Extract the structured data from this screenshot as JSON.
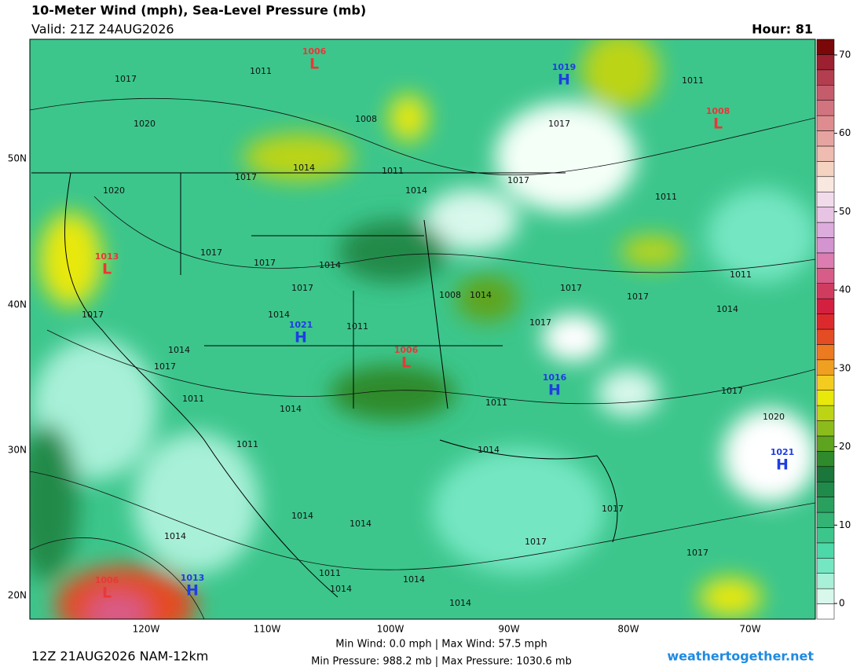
{
  "header": {
    "title": "10-Meter Wind (mph), Sea-Level Pressure (mb)",
    "valid": "Valid: 21Z 24AUG2026",
    "hour": "Hour: 81"
  },
  "axes": {
    "lat_labels": [
      "50N",
      "40N",
      "30N",
      "20N"
    ],
    "lon_labels": [
      "120W",
      "110W",
      "100W",
      "90W",
      "80W",
      "70W"
    ]
  },
  "colorbar": {
    "lim": [
      -2,
      72
    ],
    "ticks": [
      0,
      10,
      20,
      30,
      40,
      50,
      60,
      70
    ],
    "colors": [
      "#ffffff",
      "#d8f8ec",
      "#a8f0d8",
      "#74e6c2",
      "#4cd8a8",
      "#3cc68c",
      "#34b474",
      "#2aa05e",
      "#208a4a",
      "#1a763a",
      "#2e8a2a",
      "#5ea41e",
      "#8cbc1c",
      "#bcd414",
      "#e8e80a",
      "#f4cc20",
      "#f0a020",
      "#ec7a20",
      "#e44c24",
      "#dc2a2c",
      "#d42040",
      "#d03c60",
      "#d85c88",
      "#dc7cb0",
      "#d494d0",
      "#dcacdc",
      "#e8c4e4",
      "#f2dcec",
      "#f8e8e0",
      "#f4d4c0",
      "#eebcb0",
      "#e6a4a0",
      "#de8c90",
      "#d27480",
      "#c45c6c",
      "#b23e50",
      "#9c2030",
      "#7a0808"
    ]
  },
  "pressure_centers": [
    {
      "symbol": "L",
      "value": "1006"
    },
    {
      "symbol": "H",
      "value": "1019"
    },
    {
      "symbol": "L",
      "value": "1008"
    },
    {
      "symbol": "L",
      "value": "1013"
    },
    {
      "symbol": "H",
      "value": "1021"
    },
    {
      "symbol": "L",
      "value": "1006"
    },
    {
      "symbol": "H",
      "value": "1016"
    },
    {
      "symbol": "H",
      "value": "1021"
    },
    {
      "symbol": "L",
      "value": "1006"
    },
    {
      "symbol": "H",
      "value": "1013"
    }
  ],
  "isobar_labels": [
    "1017",
    "1011",
    "1008",
    "1017",
    "1011",
    "1020",
    "1014",
    "1011",
    "1014",
    "1017",
    "1020",
    "1017",
    "1011",
    "1017",
    "1017",
    "1014",
    "1017",
    "1008",
    "1014",
    "1017",
    "1017",
    "1011",
    "1014",
    "1017",
    "1014",
    "1011",
    "1017",
    "1014",
    "1017",
    "1011",
    "1014",
    "1011",
    "1017",
    "1020",
    "1011",
    "1014",
    "1014",
    "1014",
    "1017",
    "1017",
    "1014",
    "1017",
    "1011",
    "1014",
    "1014",
    "1014"
  ],
  "footer": {
    "model": "12Z 21AUG2026 NAM-12km",
    "wind_stats": "Min Wind:  0.0 mph | Max Wind:  57.5 mph",
    "pressure_stats": "Min Pressure: 988.2 mb | Max Pressure: 1030.6 mb",
    "site": "weathertogether.net"
  }
}
